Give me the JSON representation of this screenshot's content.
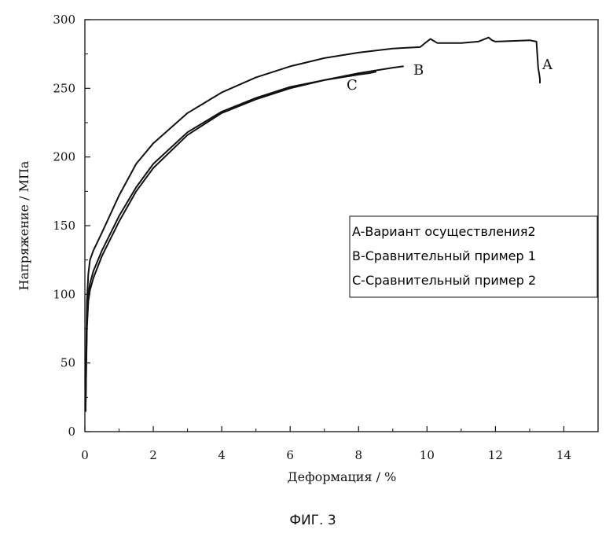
{
  "chart_data": {
    "type": "line",
    "xlabel": "Деформация / %",
    "ylabel": "Напряжение / МПа",
    "xlim": [
      0,
      15
    ],
    "ylim": [
      0,
      300
    ],
    "x_ticks": [
      0,
      2,
      4,
      6,
      8,
      10,
      12,
      14
    ],
    "y_ticks": [
      0,
      50,
      100,
      150,
      200,
      250,
      300
    ],
    "grid": false,
    "legend_position": "right",
    "legend": [
      "A-Вариант осуществления2",
      "B-Сравнительный пример 1",
      "C-Сравнительный пример 2"
    ],
    "series": [
      {
        "name": "A",
        "x": [
          0.02,
          0.04,
          0.06,
          0.1,
          0.15,
          0.25,
          0.5,
          1,
          1.5,
          2,
          3,
          4,
          5,
          6,
          7,
          8,
          9,
          9.8,
          10.0,
          10.1,
          10.3,
          11,
          11.5,
          11.8,
          11.9,
          12,
          13,
          13.2,
          13.25,
          13.3,
          13.3
        ],
        "y": [
          20,
          60,
          95,
          115,
          125,
          132,
          145,
          172,
          195,
          210,
          232,
          247,
          258,
          266,
          272,
          276,
          279,
          280,
          284,
          286,
          283,
          283,
          284,
          287,
          285,
          284,
          285,
          284,
          265,
          257,
          254
        ]
      },
      {
        "name": "B",
        "x": [
          0.02,
          0.04,
          0.06,
          0.1,
          0.15,
          0.25,
          0.5,
          1,
          1.5,
          2,
          3,
          4,
          5,
          6,
          7,
          8,
          8.5,
          9.0,
          9.3
        ],
        "y": [
          15,
          50,
          80,
          100,
          108,
          117,
          132,
          157,
          178,
          195,
          218,
          233,
          243,
          251,
          256,
          261,
          263,
          265,
          266
        ]
      },
      {
        "name": "C",
        "x": [
          0.02,
          0.04,
          0.06,
          0.1,
          0.15,
          0.25,
          0.5,
          1,
          1.5,
          2,
          3,
          4,
          5,
          6,
          7,
          8,
          8.3,
          8.5
        ],
        "y": [
          15,
          45,
          75,
          95,
          103,
          112,
          128,
          153,
          175,
          192,
          216,
          232,
          242,
          250,
          256,
          260,
          261,
          262
        ]
      }
    ],
    "curve_labels": [
      "A",
      "B",
      "C"
    ],
    "caption": "ФИГ. 3"
  }
}
